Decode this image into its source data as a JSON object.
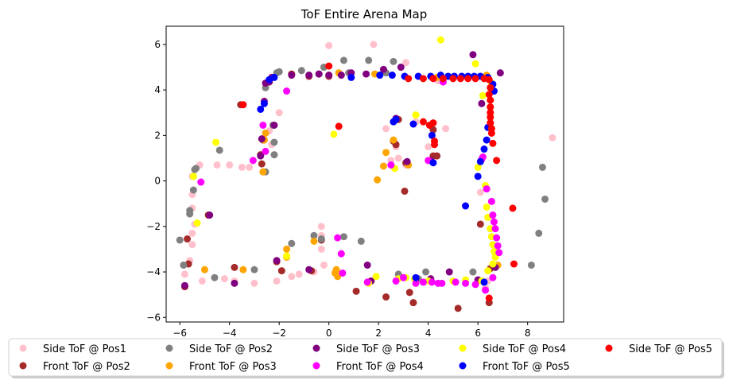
{
  "chart_data": {
    "type": "scatter",
    "title": "ToF Entire Arena Map",
    "xlabel": "",
    "ylabel": "",
    "xlim": [
      -6.55,
      9.45
    ],
    "ylim": [
      -6.2,
      6.8
    ],
    "xticks": [
      -6,
      -4,
      -2,
      0,
      2,
      4,
      6,
      8
    ],
    "yticks": [
      -6,
      -4,
      -2,
      0,
      2,
      4,
      6
    ],
    "grid": false,
    "legend_position": "below plot",
    "series": [
      {
        "name": "Side ToF @ Pos1",
        "color": "#ffc0cb",
        "points": [
          [
            -5.8,
            -4.1
          ],
          [
            -5.6,
            -3.5
          ],
          [
            -5.5,
            -2.8
          ],
          [
            -5.5,
            -2.3
          ],
          [
            -5.4,
            -1.9
          ],
          [
            -5.5,
            -1.2
          ],
          [
            -5.5,
            -0.6
          ],
          [
            -5.5,
            0.2
          ],
          [
            -5.2,
            0.7
          ],
          [
            -4.5,
            0.7
          ],
          [
            -4.0,
            0.7
          ],
          [
            -3.5,
            0.6
          ],
          [
            -3.2,
            0.6
          ],
          [
            -5.1,
            -4.4
          ],
          [
            -4.2,
            -4.3
          ],
          [
            -3.8,
            -4.4
          ],
          [
            -3.0,
            -4.5
          ],
          [
            -2.1,
            -4.4
          ],
          [
            -1.5,
            -4.2
          ],
          [
            -1.2,
            -4.1
          ],
          [
            -0.6,
            -4.0
          ],
          [
            -0.2,
            -3.7
          ],
          [
            -0.3,
            -3.0
          ],
          [
            -0.3,
            -2.4
          ],
          [
            -0.3,
            -2.0
          ],
          [
            0.0,
            5.95
          ],
          [
            1.8,
            6.0
          ],
          [
            3.1,
            5.2
          ],
          [
            4.4,
            4.4
          ],
          [
            4.7,
            2.3
          ],
          [
            4.0,
            1.5
          ],
          [
            4.3,
            1.1
          ],
          [
            3.5,
            2.6
          ],
          [
            2.3,
            2.3
          ],
          [
            2.7,
            1.5
          ],
          [
            2.8,
            1.0
          ],
          [
            2.5,
            0.9
          ],
          [
            3.1,
            0.7
          ],
          [
            -2.0,
            3.0
          ],
          [
            -2.3,
            1.6
          ],
          [
            -2.4,
            2.2
          ],
          [
            6.1,
            -0.5
          ],
          [
            6.4,
            -4.4
          ],
          [
            6.3,
            -4.7
          ],
          [
            9.0,
            1.9
          ]
        ]
      },
      {
        "name": "Front ToF @ Pos2",
        "color": "#a52a2a",
        "points": [
          [
            -5.8,
            -4.65
          ],
          [
            -5.65,
            -3.65
          ],
          [
            -5.7,
            -2.55
          ],
          [
            -4.85,
            -1.5
          ],
          [
            -3.8,
            -3.8
          ],
          [
            -3.55,
            3.35
          ],
          [
            -2.75,
            1.15
          ],
          [
            -2.7,
            0.75
          ],
          [
            -2.65,
            1.8
          ],
          [
            -2.1,
            -3.55
          ],
          [
            -1.9,
            -3.95
          ],
          [
            -0.7,
            -3.95
          ],
          [
            -0.3,
            -2.6
          ],
          [
            1.1,
            -4.85
          ],
          [
            2.3,
            -5.1
          ],
          [
            3.05,
            -0.45
          ],
          [
            3.25,
            -4.9
          ],
          [
            3.4,
            -5.35
          ],
          [
            2.6,
            1.75
          ],
          [
            2.7,
            1.6
          ],
          [
            2.8,
            2.7
          ],
          [
            3.1,
            0.8
          ],
          [
            4.2,
            1.1
          ],
          [
            4.35,
            1.1
          ],
          [
            4.2,
            2.25
          ],
          [
            5.2,
            -5.6
          ],
          [
            6.1,
            -1.9
          ],
          [
            6.45,
            -5.35
          ],
          [
            6.5,
            -3.85
          ],
          [
            -0.8,
            4.6
          ],
          [
            -0.4,
            4.7
          ],
          [
            0.0,
            4.6
          ],
          [
            -1.5,
            4.7
          ]
        ]
      },
      {
        "name": "Side ToF @ Pos2",
        "color": "#808080",
        "points": [
          [
            -6.0,
            -2.6
          ],
          [
            -5.85,
            -3.7
          ],
          [
            -5.6,
            -1.3
          ],
          [
            -5.6,
            -1.45
          ],
          [
            -5.45,
            -0.4
          ],
          [
            -5.4,
            0.5
          ],
          [
            -5.35,
            0.55
          ],
          [
            -4.4,
            1.35
          ],
          [
            -4.6,
            -4.25
          ],
          [
            -3.0,
            -3.9
          ],
          [
            -2.55,
            0.4
          ],
          [
            -2.2,
            1.15
          ],
          [
            -2.2,
            1.7
          ],
          [
            -2.25,
            2.45
          ],
          [
            -2.55,
            4.1
          ],
          [
            -2.0,
            4.8
          ],
          [
            -2.1,
            4.75
          ],
          [
            -1.1,
            4.85
          ],
          [
            -0.6,
            -2.4
          ],
          [
            -0.3,
            -2.55
          ],
          [
            -1.5,
            -2.75
          ],
          [
            0.6,
            -2.45
          ],
          [
            1.3,
            -2.65
          ],
          [
            0.8,
            4.75
          ],
          [
            0.6,
            5.3
          ],
          [
            1.6,
            5.3
          ],
          [
            2.6,
            5.25
          ],
          [
            2.3,
            4.75
          ],
          [
            -0.2,
            5.0
          ],
          [
            2.8,
            -4.1
          ],
          [
            3.9,
            -4.0
          ],
          [
            3.6,
            -4.3
          ],
          [
            5.8,
            -4.0
          ],
          [
            8.6,
            0.6
          ],
          [
            8.7,
            -0.8
          ],
          [
            8.45,
            -2.3
          ],
          [
            8.15,
            -3.7
          ]
        ]
      },
      {
        "name": "Front ToF @ Pos3",
        "color": "#ffa500",
        "points": [
          [
            -5.0,
            -3.9
          ],
          [
            -3.45,
            -3.9
          ],
          [
            -2.65,
            0.4
          ],
          [
            -2.6,
            1.8
          ],
          [
            -2.55,
            2.1
          ],
          [
            -1.7,
            -3.0
          ],
          [
            -1.7,
            -3.35
          ],
          [
            -0.6,
            -2.65
          ],
          [
            0.25,
            -4.05
          ],
          [
            0.3,
            -3.9
          ],
          [
            0.35,
            -4.2
          ],
          [
            0.0,
            4.65
          ],
          [
            0.4,
            4.75
          ],
          [
            1.85,
            4.7
          ],
          [
            1.95,
            0.05
          ],
          [
            2.2,
            0.65
          ],
          [
            2.3,
            1.25
          ],
          [
            2.6,
            1.8
          ],
          [
            3.2,
            0.7
          ],
          [
            4.35,
            4.55
          ],
          [
            1.7,
            -4.4
          ],
          [
            6.35,
            4.65
          ],
          [
            6.8,
            -3.7
          ]
        ]
      },
      {
        "name": "Side ToF @ Pos3",
        "color": "#800080",
        "points": [
          [
            -5.8,
            -4.6
          ],
          [
            -4.8,
            -1.5
          ],
          [
            -3.8,
            -4.5
          ],
          [
            -2.1,
            -3.5
          ],
          [
            -2.75,
            1.1
          ],
          [
            -2.7,
            1.85
          ],
          [
            -2.6,
            3.5
          ],
          [
            -2.55,
            4.3
          ],
          [
            -2.4,
            4.35
          ],
          [
            -2.3,
            4.55
          ],
          [
            -2.2,
            2.45
          ],
          [
            -1.5,
            4.65
          ],
          [
            -0.8,
            4.65
          ],
          [
            -0.4,
            4.7
          ],
          [
            0.0,
            4.65
          ],
          [
            0.5,
            4.65
          ],
          [
            0.9,
            4.75
          ],
          [
            1.5,
            4.7
          ],
          [
            2.2,
            4.9
          ],
          [
            2.9,
            5.0
          ],
          [
            2.7,
            2.75
          ],
          [
            3.15,
            0.85
          ],
          [
            4.1,
            0.9
          ],
          [
            1.55,
            -3.7
          ],
          [
            1.7,
            -4.4
          ],
          [
            3.5,
            -4.3
          ],
          [
            4.1,
            -4.3
          ],
          [
            4.85,
            -4.0
          ],
          [
            5.8,
            5.55
          ],
          [
            6.15,
            3.4
          ],
          [
            6.9,
            4.75
          ],
          [
            6.0,
            -4.35
          ],
          [
            6.7,
            -3.8
          ],
          [
            -0.8,
            -3.9
          ]
        ]
      },
      {
        "name": "Side ToF @ Pos4",
        "color": "#ffff00",
        "points": [
          [
            -5.45,
            0.2
          ],
          [
            -5.3,
            -1.85
          ],
          [
            -4.55,
            1.7
          ],
          [
            -1.7,
            -3.3
          ],
          [
            0.2,
            2.05
          ],
          [
            1.6,
            -4.5
          ],
          [
            2.65,
            0.55
          ],
          [
            3.45,
            -4.3
          ],
          [
            3.5,
            2.9
          ],
          [
            4.0,
            -4.4
          ],
          [
            4.5,
            6.2
          ],
          [
            5.0,
            -4.4
          ],
          [
            5.5,
            -4.35
          ],
          [
            5.9,
            5.15
          ],
          [
            6.0,
            0.6
          ],
          [
            6.15,
            -4.4
          ],
          [
            6.35,
            -1.15
          ],
          [
            6.4,
            -1.6
          ],
          [
            6.5,
            -2.1
          ],
          [
            6.55,
            -2.45
          ],
          [
            6.6,
            -2.8
          ],
          [
            6.65,
            -3.1
          ],
          [
            6.7,
            -3.35
          ],
          [
            6.6,
            -3.65
          ],
          [
            6.4,
            -3.95
          ],
          [
            6.3,
            -0.2
          ],
          [
            6.2,
            3.75
          ],
          [
            6.55,
            4.3
          ],
          [
            1.9,
            -4.2
          ],
          [
            2.8,
            -4.3
          ],
          [
            3.1,
            -4.25
          ]
        ]
      },
      {
        "name": "Front ToF @ Pos4",
        "color": "#ff00ff",
        "points": [
          [
            -5.15,
            -0.05
          ],
          [
            -3.05,
            0.9
          ],
          [
            -2.65,
            2.45
          ],
          [
            -2.55,
            1.3
          ],
          [
            -1.7,
            3.95
          ],
          [
            0.35,
            -2.5
          ],
          [
            0.5,
            -3.2
          ],
          [
            0.55,
            -4.05
          ],
          [
            1.55,
            -4.45
          ],
          [
            2.7,
            -4.4
          ],
          [
            3.0,
            -4.25
          ],
          [
            3.5,
            -4.5
          ],
          [
            3.8,
            -4.45
          ],
          [
            4.15,
            -4.45
          ],
          [
            4.4,
            -4.5
          ],
          [
            4.6,
            4.35
          ],
          [
            4.55,
            -4.5
          ],
          [
            5.1,
            -4.45
          ],
          [
            5.5,
            -4.5
          ],
          [
            5.9,
            -4.55
          ],
          [
            6.3,
            -4.8
          ],
          [
            6.35,
            -0.35
          ],
          [
            6.55,
            -0.9
          ],
          [
            6.6,
            -1.5
          ],
          [
            6.65,
            -1.8
          ],
          [
            6.7,
            -2.1
          ],
          [
            6.75,
            -2.5
          ],
          [
            6.8,
            -2.85
          ],
          [
            6.85,
            -3.15
          ],
          [
            6.6,
            -4.25
          ],
          [
            6.2,
            1.05
          ],
          [
            6.15,
            0.95
          ],
          [
            2.5,
            0.7
          ],
          [
            4.0,
            0.9
          ]
        ]
      },
      {
        "name": "Front ToF @ Pos5",
        "color": "#0000ff",
        "points": [
          [
            -2.75,
            3.15
          ],
          [
            -2.6,
            3.4
          ],
          [
            -2.4,
            4.45
          ],
          [
            -2.2,
            4.55
          ],
          [
            0.9,
            4.55
          ],
          [
            2.05,
            4.65
          ],
          [
            2.55,
            4.65
          ],
          [
            3.05,
            4.6
          ],
          [
            3.6,
            4.6
          ],
          [
            4.1,
            4.6
          ],
          [
            4.5,
            4.65
          ],
          [
            4.8,
            4.6
          ],
          [
            5.05,
            4.6
          ],
          [
            5.35,
            4.6
          ],
          [
            5.6,
            4.6
          ],
          [
            5.85,
            4.6
          ],
          [
            6.1,
            4.6
          ],
          [
            6.4,
            4.55
          ],
          [
            6.6,
            4.25
          ],
          [
            6.65,
            3.95
          ],
          [
            6.4,
            2.35
          ],
          [
            6.35,
            1.8
          ],
          [
            6.25,
            1.4
          ],
          [
            6.1,
            0.85
          ],
          [
            6.0,
            0.2
          ],
          [
            5.5,
            -1.1
          ],
          [
            3.4,
            2.5
          ],
          [
            4.15,
            2.0
          ],
          [
            4.2,
            0.8
          ],
          [
            2.6,
            2.6
          ],
          [
            2.7,
            2.7
          ],
          [
            3.5,
            -4.25
          ],
          [
            6.25,
            -4.45
          ]
        ]
      },
      {
        "name": "Side ToF @ Pos5",
        "color": "#ff0000",
        "points": [
          [
            -3.45,
            3.35
          ],
          [
            0.0,
            5.05
          ],
          [
            0.4,
            2.4
          ],
          [
            3.2,
            4.5
          ],
          [
            3.8,
            4.5
          ],
          [
            3.8,
            2.6
          ],
          [
            4.05,
            2.45
          ],
          [
            4.2,
            2.55
          ],
          [
            4.25,
            1.75
          ],
          [
            4.25,
            1.6
          ],
          [
            4.2,
            4.5
          ],
          [
            4.6,
            4.5
          ],
          [
            5.0,
            4.5
          ],
          [
            5.3,
            4.5
          ],
          [
            5.6,
            4.5
          ],
          [
            5.9,
            4.5
          ],
          [
            6.25,
            4.5
          ],
          [
            6.45,
            4.45
          ],
          [
            6.5,
            4.1
          ],
          [
            6.45,
            3.8
          ],
          [
            6.5,
            3.55
          ],
          [
            6.5,
            3.25
          ],
          [
            6.5,
            3.0
          ],
          [
            6.5,
            2.8
          ],
          [
            6.5,
            2.55
          ],
          [
            6.55,
            2.3
          ],
          [
            6.55,
            2.1
          ],
          [
            6.6,
            1.65
          ],
          [
            6.75,
            0.9
          ],
          [
            6.45,
            -5.15
          ],
          [
            7.4,
            -1.2
          ],
          [
            7.45,
            -3.65
          ]
        ]
      }
    ],
    "legend_order": [
      "Side ToF @ Pos1",
      "Side ToF @ Pos2",
      "Side ToF @ Pos3",
      "Side ToF @ Pos4",
      "Side ToF @ Pos5",
      "Front ToF @ Pos2",
      "Front ToF @ Pos3",
      "Front ToF @ Pos4",
      "Front ToF @ Pos5"
    ]
  }
}
